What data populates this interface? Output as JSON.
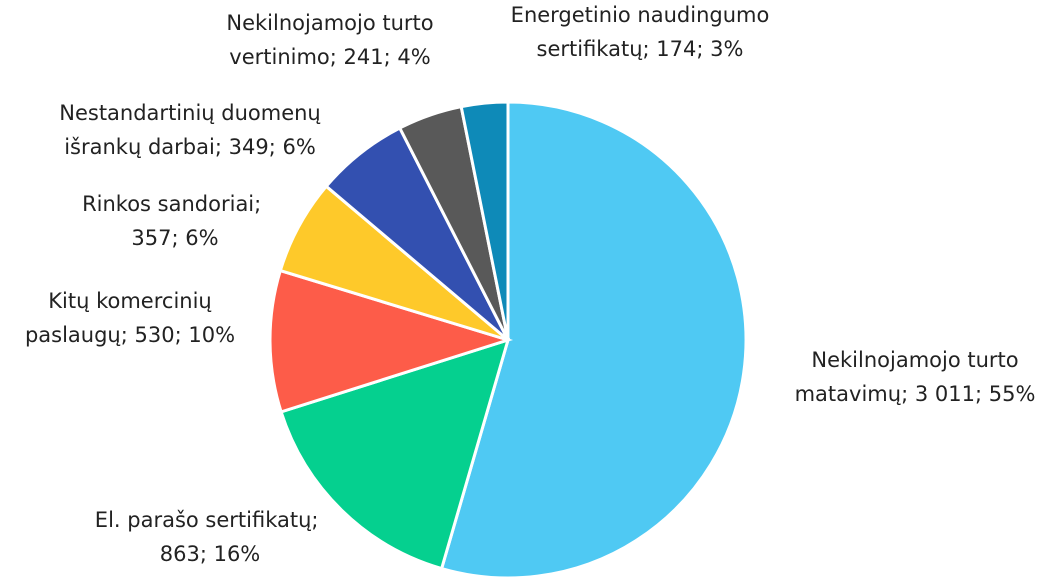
{
  "chart_data": {
    "type": "pie",
    "categories": [
      [
        "Nekilnojamojo turto",
        "matavimų"
      ],
      [
        "El. parašo sertifikatų"
      ],
      [
        "Kitų komercinių",
        "paslaugų"
      ],
      [
        "Rinkos sandoriai"
      ],
      [
        "Nestandartinių duomenų",
        "išrankų darbai"
      ],
      [
        "Nekilnojamojo turto",
        "vertinimo"
      ],
      [
        "Energetinio naudingumo",
        "sertifikatų"
      ]
    ],
    "values": [
      3011,
      863,
      530,
      357,
      349,
      241,
      174
    ],
    "value_labels": [
      "3 011",
      "863",
      "530",
      "357",
      "349",
      "241",
      "174"
    ],
    "percentages": [
      {
        "value": 55,
        "label": "55%"
      },
      {
        "value": 16,
        "label": "16%"
      },
      {
        "value": 10,
        "label": "10%"
      },
      {
        "value": 6,
        "label": "6%"
      },
      {
        "value": 6,
        "label": "6%"
      },
      {
        "value": 4,
        "label": "4%"
      },
      {
        "value": 3,
        "label": "3%"
      }
    ],
    "separator": "; ",
    "colors": [
      "#4fc9f3",
      "#05d08f",
      "#fd5c49",
      "#fec92a",
      "#3350b0",
      "#595959",
      "#0e8ab8"
    ]
  }
}
